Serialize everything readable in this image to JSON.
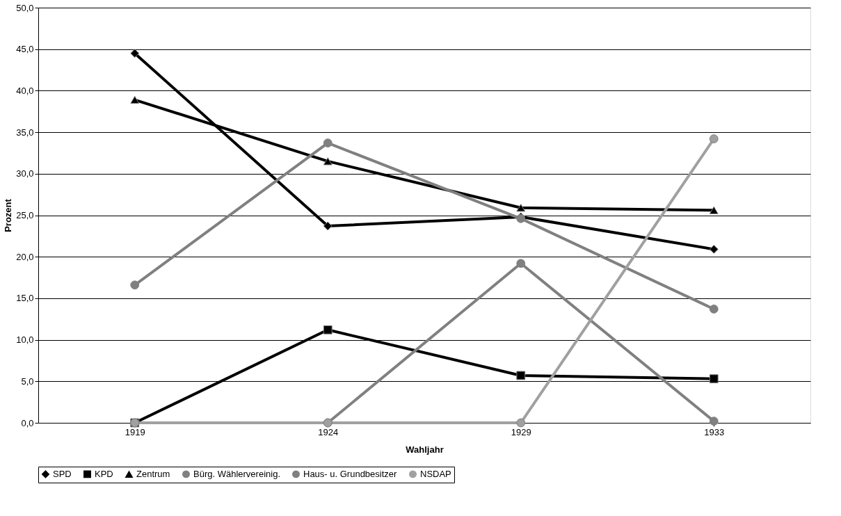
{
  "chart_data": {
    "type": "line",
    "xlabel": "Wahljahr",
    "ylabel": "Prozent",
    "categories": [
      "1919",
      "1924",
      "1929",
      "1933"
    ],
    "series": [
      {
        "name": "SPD",
        "color": "#000000",
        "marker": "diamond",
        "values": [
          44.5,
          23.7,
          24.8,
          20.9
        ]
      },
      {
        "name": "KPD",
        "color": "#000000",
        "marker": "square",
        "values": [
          0,
          11.2,
          5.7,
          5.3
        ]
      },
      {
        "name": "Zentrum",
        "color": "#000000",
        "marker": "triangle",
        "values": [
          38.9,
          31.5,
          25.9,
          25.6
        ]
      },
      {
        "name": "Bürg. Wählervereinig.",
        "color": "#808080",
        "marker": "circle",
        "values": [
          16.6,
          33.7,
          24.6,
          13.7
        ]
      },
      {
        "name": "Haus- u. Grundbesitzer",
        "color": "#808080",
        "marker": "circle",
        "values": [
          0,
          0,
          19.2,
          0.2
        ]
      },
      {
        "name": "NSDAP",
        "color": "#a0a0a0",
        "marker": "circle",
        "values": [
          0,
          0,
          0,
          34.2
        ]
      }
    ],
    "ylim": [
      0,
      50
    ],
    "yticks": [
      {
        "value": 0,
        "label": "0,0"
      },
      {
        "value": 5,
        "label": "5,0"
      },
      {
        "value": 10,
        "label": "10,0"
      },
      {
        "value": 15,
        "label": "15,0"
      },
      {
        "value": 20,
        "label": "20,0"
      },
      {
        "value": 25,
        "label": "25,0"
      },
      {
        "value": 30,
        "label": "30,0"
      },
      {
        "value": 35,
        "label": "35,0"
      },
      {
        "value": 40,
        "label": "40,0"
      },
      {
        "value": 45,
        "label": "45,0"
      },
      {
        "value": 50,
        "label": "50,0"
      }
    ],
    "grid": "y",
    "legend": "bottom",
    "line_style": "solid"
  }
}
